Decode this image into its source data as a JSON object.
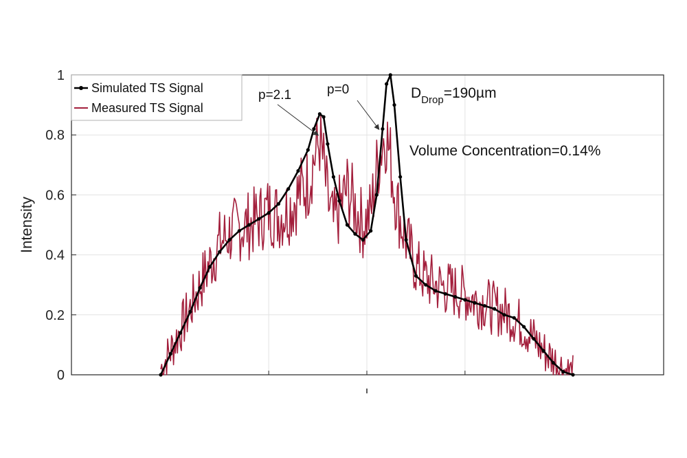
{
  "chart_data": {
    "type": "line",
    "ylabel": "Intensity",
    "xlabel": "",
    "ylim": [
      0,
      1
    ],
    "xlim": [
      -105,
      105
    ],
    "yticks": [
      "0",
      "0.2",
      "0.4",
      "0.6",
      "0.8",
      "1"
    ],
    "xticks": [
      -50,
      0,
      50
    ],
    "grid": true,
    "legend_position": "top-left",
    "series": [
      {
        "name": "Simulated TS Signal",
        "color": "#000000",
        "marker": "dot",
        "x": [
          -105,
          -100,
          -95,
          -90,
          -85,
          -80,
          -75,
          -70,
          -65,
          -60,
          -55,
          -50,
          -45,
          -40,
          -35,
          -30,
          -27,
          -24,
          -22,
          -20,
          -17,
          -14,
          -10,
          -6,
          -2,
          2,
          5,
          8,
          10,
          12,
          14,
          17,
          20,
          25,
          30,
          35,
          40,
          45,
          50,
          55,
          60,
          65,
          70,
          75,
          80,
          85,
          90,
          95,
          100,
          105
        ],
        "y": [
          0.0,
          0.07,
          0.14,
          0.21,
          0.29,
          0.36,
          0.41,
          0.45,
          0.48,
          0.5,
          0.52,
          0.54,
          0.57,
          0.62,
          0.68,
          0.75,
          0.82,
          0.87,
          0.86,
          0.77,
          0.66,
          0.58,
          0.5,
          0.47,
          0.45,
          0.48,
          0.6,
          0.82,
          0.97,
          1.0,
          0.9,
          0.66,
          0.45,
          0.33,
          0.3,
          0.28,
          0.27,
          0.26,
          0.25,
          0.24,
          0.23,
          0.22,
          0.2,
          0.19,
          0.16,
          0.12,
          0.08,
          0.04,
          0.01,
          0.0
        ]
      },
      {
        "name": "Measured TS Signal",
        "color": "#a31f3c",
        "marker": "none",
        "noisy": true,
        "x": [
          -105,
          -100,
          -95,
          -90,
          -85,
          -80,
          -75,
          -70,
          -65,
          -60,
          -55,
          -50,
          -45,
          -40,
          -35,
          -30,
          -27,
          -24,
          -22,
          -20,
          -17,
          -14,
          -10,
          -6,
          -2,
          2,
          5,
          8,
          10,
          12,
          14,
          17,
          20,
          25,
          30,
          35,
          40,
          45,
          50,
          55,
          60,
          65,
          70,
          75,
          80,
          85,
          90,
          95,
          100,
          105
        ],
        "y": [
          0.02,
          0.08,
          0.15,
          0.22,
          0.3,
          0.37,
          0.44,
          0.47,
          0.49,
          0.5,
          0.52,
          0.55,
          0.53,
          0.55,
          0.6,
          0.64,
          0.72,
          0.78,
          0.7,
          0.58,
          0.5,
          0.55,
          0.62,
          0.56,
          0.5,
          0.54,
          0.68,
          0.78,
          0.8,
          0.72,
          0.62,
          0.52,
          0.45,
          0.36,
          0.32,
          0.3,
          0.29,
          0.28,
          0.27,
          0.25,
          0.24,
          0.22,
          0.21,
          0.19,
          0.16,
          0.12,
          0.08,
          0.05,
          0.02,
          0.0
        ]
      }
    ],
    "annotations": [
      {
        "text": "p=2.1",
        "point_x": -25,
        "point_y": 0.8
      },
      {
        "text": "p=0",
        "point_x": 6,
        "point_y": 0.82
      }
    ],
    "info_text": {
      "drop_prefix": "D",
      "drop_subscript": "Drop",
      "drop_value": "=190µm",
      "concentration": "Volume Concentration=0.14%"
    }
  }
}
